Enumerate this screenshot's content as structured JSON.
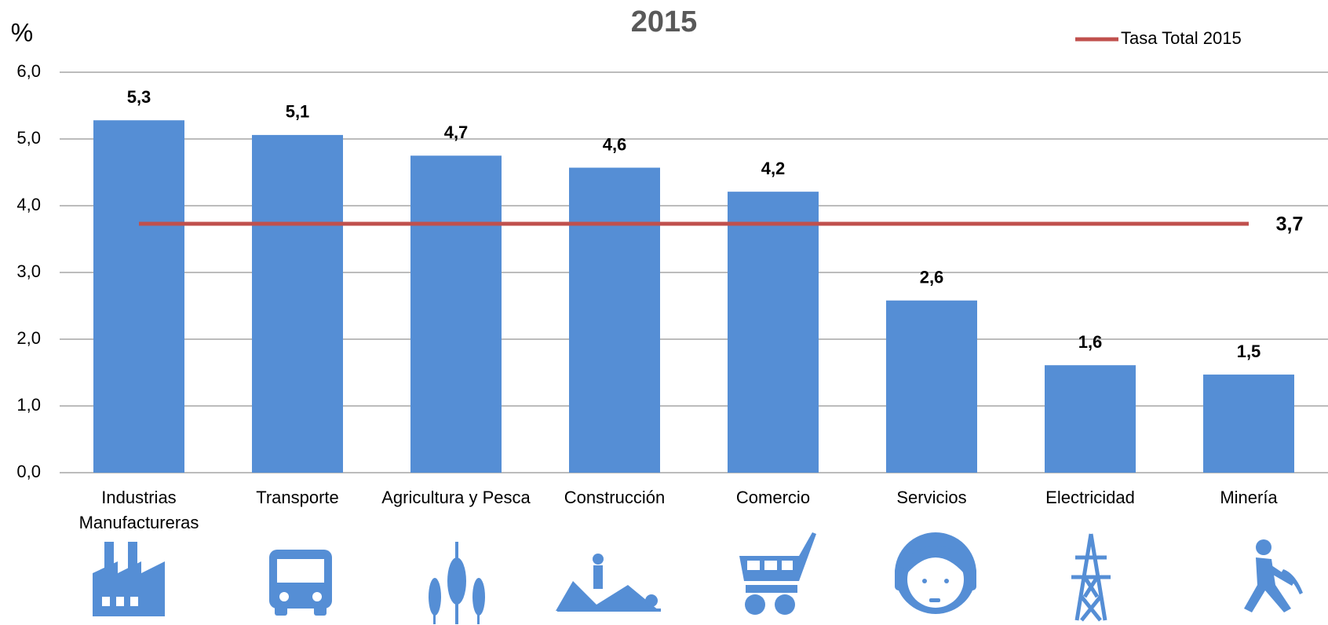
{
  "chart_data": {
    "type": "bar",
    "title": "2015",
    "y_label": "%",
    "categories": [
      "Industrias Manufactureras",
      "Transporte",
      "Agricultura y Pesca",
      "Construcción",
      "Comercio",
      "Servicios",
      "Electricidad",
      "Minería"
    ],
    "values": [
      5.28,
      5.06,
      4.75,
      4.57,
      4.21,
      2.58,
      1.61,
      1.47
    ],
    "value_labels": [
      "5,3",
      "5,1",
      "4,7",
      "4,6",
      "4,2",
      "2,6",
      "1,6",
      "1,5"
    ],
    "color": "#558ed5",
    "reference_line": {
      "name": "Tasa Total 2015",
      "value": 3.73,
      "value_label": "3,7",
      "color": "#c0504d"
    },
    "ylim": [
      0,
      6
    ],
    "yticks": [
      {
        "value": 0,
        "label": "0,0"
      },
      {
        "value": 1,
        "label": "1,0"
      },
      {
        "value": 2,
        "label": "2,0"
      },
      {
        "value": 3,
        "label": "3,0"
      },
      {
        "value": 4,
        "label": "4,0"
      },
      {
        "value": 5,
        "label": "5,0"
      },
      {
        "value": 6,
        "label": "6,0"
      }
    ],
    "grid": true,
    "legend": "top-right"
  }
}
